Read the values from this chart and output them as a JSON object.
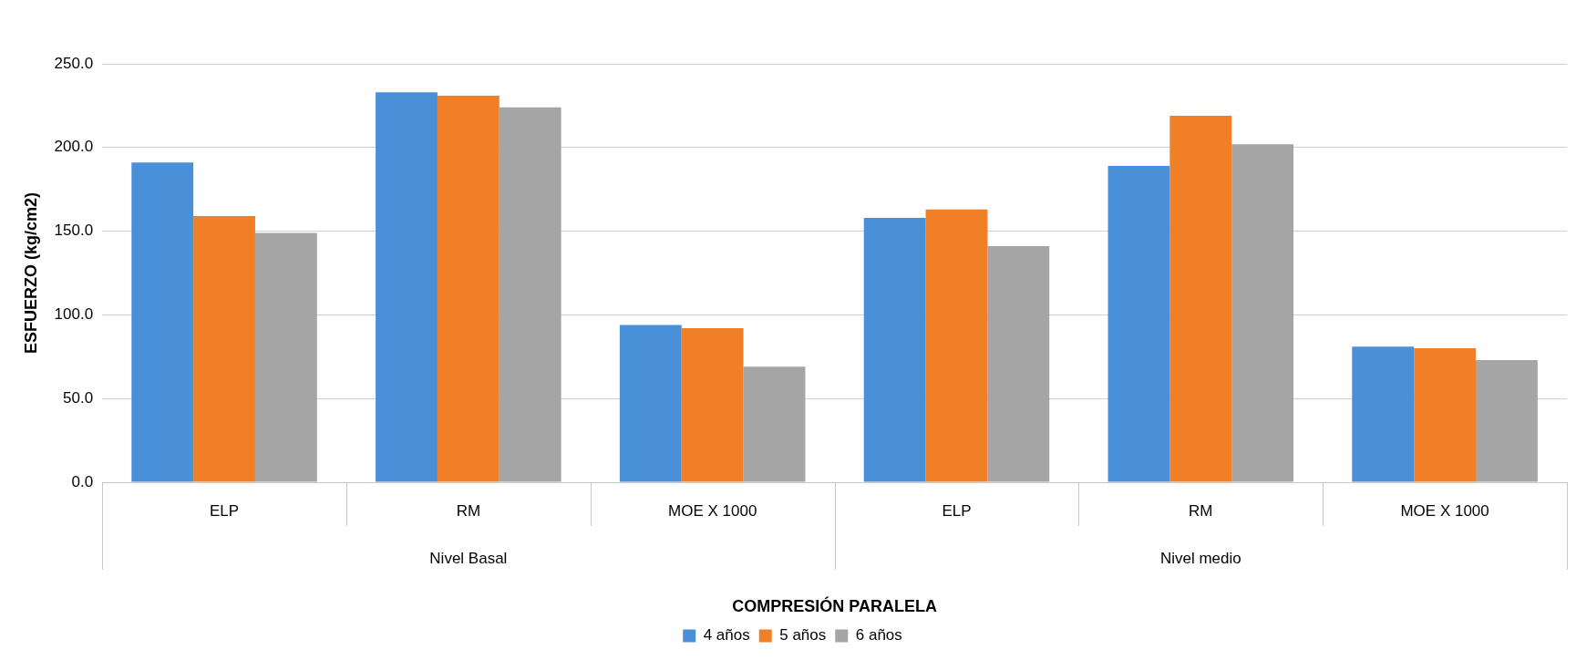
{
  "chart_data": {
    "type": "bar",
    "xlabel": "COMPRESIÓN PARALELA",
    "ylabel": "ESFUERZO (kg/cm2)",
    "categories": [
      "ELP",
      "RM",
      "MOE X 1000",
      "ELP",
      "RM",
      "MOE X 1000"
    ],
    "series": [
      {
        "name": "4 años",
        "color": "#4a90d9",
        "values": [
          191,
          233,
          94,
          158,
          189,
          81
        ]
      },
      {
        "name": "5 años",
        "color": "#f07f28",
        "values": [
          159,
          231,
          92,
          163,
          219,
          80
        ]
      },
      {
        "name": "6 años",
        "color": "#a5a5a5",
        "values": [
          149,
          224,
          69,
          141,
          202,
          73
        ]
      }
    ],
    "annotations": [
      "Nivel Basal",
      "Nivel medio"
    ],
    "ylim": [
      0,
      250
    ],
    "yticks": [
      {
        "value": 0,
        "label": "0.0"
      },
      {
        "value": 50,
        "label": "50.0"
      },
      {
        "value": 100,
        "label": "100.0"
      },
      {
        "value": 150,
        "label": "150.0"
      },
      {
        "value": 200,
        "label": "200.0"
      },
      {
        "value": 250,
        "label": "250.0"
      }
    ],
    "grid": "y",
    "legend": "bottom"
  }
}
